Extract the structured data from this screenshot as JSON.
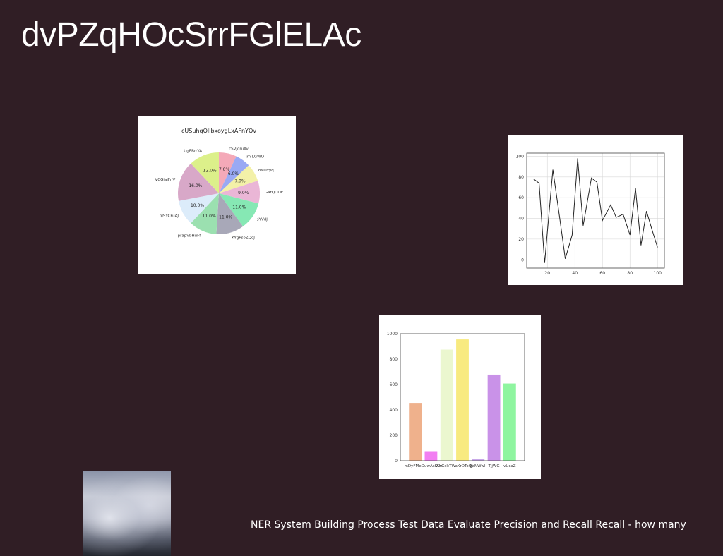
{
  "slide": {
    "title": "dvPZqHOcSrrFGlELAc",
    "caption": "NER System Building Process Test Data Evaluate Precision and Recall Recall - how many"
  },
  "chart_data": [
    {
      "type": "pie",
      "title": "cUSuhqQlIbxoygLxAFnYQv",
      "labels": [
        "cSVjoruAv",
        "jm LGWQ",
        "oNOxyq",
        "GarQOOE",
        "sYVdJ",
        "KYgPsoZQoJ",
        "prapVbHuFf",
        "bJSYCFuAJ",
        "VCGiajFnV",
        "UgEBrrYA"
      ],
      "values": [
        7.0,
        6.0,
        7.0,
        9.0,
        11.0,
        11.0,
        11.0,
        10.0,
        16.0,
        12.0
      ],
      "pct_labels": [
        "7.0%",
        "6.0%",
        "7.0%",
        "9.0%",
        "11.0%",
        "11.0%",
        "11.0%",
        "10.0%",
        "16.0%",
        "12.0%"
      ],
      "colors": [
        "#f4a9b8",
        "#99a9f4",
        "#f3f1a8",
        "#eab6d6",
        "#86e8b4",
        "#a8a8b8",
        "#9be0b0",
        "#dcecfa",
        "#d8a8c8",
        "#dcf08a"
      ]
    },
    {
      "type": "line",
      "x": [
        10,
        14,
        18,
        24,
        29,
        33,
        38,
        42,
        46,
        52,
        56,
        60,
        66,
        70,
        75,
        80,
        84,
        88,
        92,
        96,
        100
      ],
      "y": [
        78,
        74,
        -3,
        87,
        40,
        1,
        24,
        98,
        33,
        79,
        75,
        38,
        53,
        41,
        44,
        24,
        69,
        14,
        47,
        29,
        12
      ],
      "xticks": [
        20,
        40,
        60,
        80,
        100
      ],
      "yticks": [
        0,
        20,
        40,
        60,
        80,
        100
      ],
      "xlim": [
        5,
        105
      ],
      "ylim": [
        -8,
        103
      ],
      "grid": true,
      "color": "#222222"
    },
    {
      "type": "bar",
      "categories": [
        "mDyFMeOuw",
        "AsKCo",
        "AhGsltTWo",
        "aKrDToQj",
        "JjaNWwli",
        "TjjWG",
        "vUcaZ"
      ],
      "tick_labels": [
        "mDyFMeOuwAsKCo",
        "",
        "AhGsltTWaKrDToQj",
        "",
        "JjaNWwli",
        "TjjWG",
        "vUcaZ"
      ],
      "values": [
        455,
        75,
        875,
        955,
        15,
        678,
        608
      ],
      "colors": [
        "#efb18c",
        "#f27ef2",
        "#ebf7cf",
        "#f8ea80",
        "#c8a8e8",
        "#c992e8",
        "#8ff5a0"
      ],
      "yticks": [
        0,
        200,
        400,
        600,
        800,
        1000
      ],
      "ylim": [
        0,
        1000
      ]
    }
  ]
}
